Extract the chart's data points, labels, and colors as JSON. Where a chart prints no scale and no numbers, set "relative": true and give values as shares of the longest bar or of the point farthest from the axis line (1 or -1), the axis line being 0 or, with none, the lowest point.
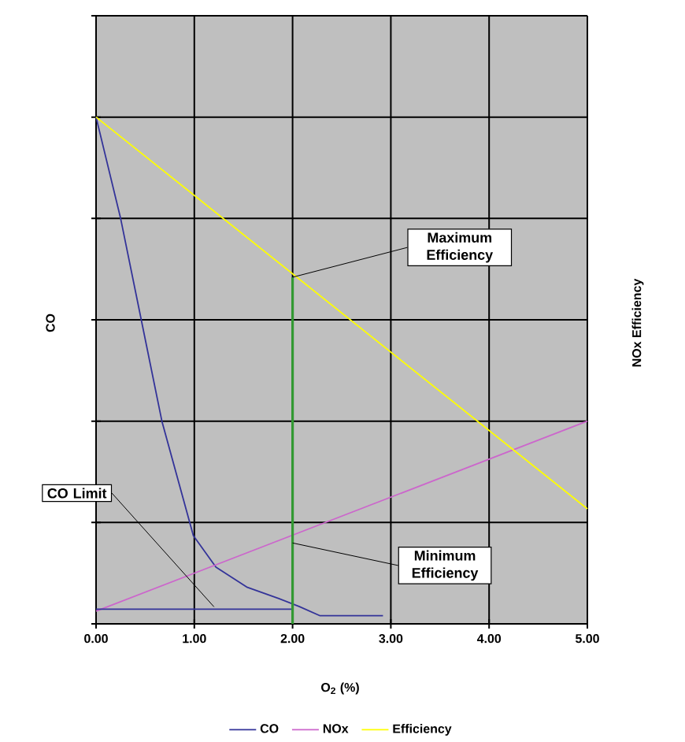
{
  "chart_data": {
    "type": "line",
    "relative": true,
    "xlabel": "O$_{2}$ (%)",
    "ylabel": "CO",
    "y2label": "NOx Efficiency",
    "xlim": [
      0,
      5
    ],
    "xticks": [
      {
        "value": 0,
        "label": "0.00"
      },
      {
        "value": 1,
        "label": "1.00"
      },
      {
        "value": 2,
        "label": "2.00"
      },
      {
        "value": 3,
        "label": "3.00"
      },
      {
        "value": 4,
        "label": "4.00"
      },
      {
        "value": 5,
        "label": "5.00"
      }
    ],
    "grid": true,
    "legend": "bottom",
    "line_style": "solid",
    "series": [
      {
        "name": "CO",
        "color": "#333399",
        "x": [
          0,
          0.25,
          0.46,
          0.67,
          0.99,
          1.22,
          1.54,
          1.86,
          2.07,
          2.28,
          2.92
        ],
        "values": [
          1.0,
          0.8,
          0.6,
          0.4,
          0.174,
          0.112,
          0.072,
          0.05,
          0.034,
          0.016,
          0.016
        ]
      },
      {
        "name": "NOx",
        "color": "#cc66cc",
        "x": [
          0,
          5
        ],
        "values": [
          0.025,
          0.4
        ]
      },
      {
        "name": "Efficiency",
        "color": "#ffff00",
        "x": [
          0,
          5
        ],
        "values": [
          1.0,
          0.227
        ]
      },
      {
        "color": "#333399",
        "x": [
          0,
          2
        ],
        "values": [
          0.029,
          0.029
        ]
      },
      {
        "color": "#339933",
        "x": [
          2,
          2
        ],
        "values": [
          0,
          0.684
        ]
      }
    ],
    "annotations": [
      "CO Limit",
      "Maximum Efficiency",
      "Minimum Efficiency"
    ]
  }
}
